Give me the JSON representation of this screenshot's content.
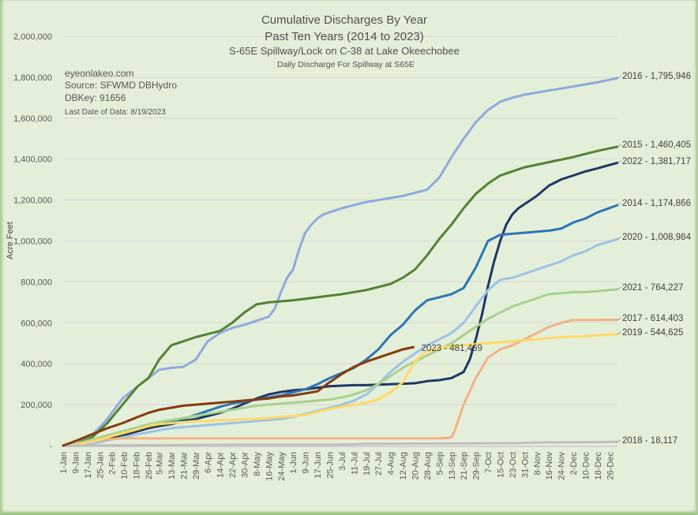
{
  "chart_data": {
    "type": "line",
    "title": "Cumulative Discharges By Year",
    "subtitle": "Past Ten Years (2014 to 2023)",
    "subtitle2": "S-65E Spillway/Lock on C-38 at Lake Okeechobee",
    "subtitle3": "Daily Discharge For Spillway at S65E",
    "info": [
      "eyeonlakeo.com",
      "Source: SFWMD DBHydro",
      "DBKey: 91656"
    ],
    "info_small": "Last Date of Data: 8/19/2023",
    "xlabel": "",
    "ylabel": "Acre Feet",
    "ylim": [
      0,
      2000000
    ],
    "yticks": [
      0,
      200000,
      400000,
      600000,
      800000,
      1000000,
      1200000,
      1400000,
      1600000,
      1800000,
      2000000
    ],
    "ytick_labels": [
      "-",
      "200,000",
      "400,000",
      "600,000",
      "800,000",
      "1,000,000",
      "1,200,000",
      "1,400,000",
      "1,600,000",
      "1,800,000",
      "2,000,000"
    ],
    "xlim_day_of_year": [
      1,
      365
    ],
    "x_tick_days": [
      1,
      9,
      17,
      25,
      33,
      41,
      49,
      57,
      64,
      72,
      80,
      88,
      96,
      104,
      112,
      120,
      128,
      136,
      144,
      152,
      160,
      168,
      176,
      184,
      192,
      200,
      208,
      216,
      224,
      232,
      240,
      248,
      256,
      264,
      272,
      280,
      288,
      296,
      304,
      312,
      320,
      328,
      336,
      344,
      352,
      360
    ],
    "x_tick_labels": [
      "1-Jan",
      "9-Jan",
      "17-Jan",
      "25-Jan",
      "2-Feb",
      "10-Feb",
      "18-Feb",
      "26-Feb",
      "5-Mar",
      "13-Mar",
      "21-Mar",
      "29-Mar",
      "6-Apr",
      "14-Apr",
      "22-Apr",
      "30-Apr",
      "8-May",
      "16-May",
      "24-May",
      "1-Jun",
      "9-Jun",
      "17-Jun",
      "25-Jun",
      "3-Jul",
      "11-Jul",
      "19-Jul",
      "27-Jul",
      "4-Aug",
      "12-Aug",
      "20-Aug",
      "28-Aug",
      "5-Sep",
      "13-Sep",
      "21-Sep",
      "29-Sep",
      "7-Oct",
      "15-Oct",
      "23-Oct",
      "31-Oct",
      "8-Nov",
      "16-Nov",
      "24-Nov",
      "2-Dec",
      "10-Dec",
      "18-Dec",
      "26-Dec"
    ],
    "grid": true,
    "legend": "end-of-line labels (right)",
    "series": [
      {
        "name": "2016",
        "label": "2016 - 1,795,946",
        "color": "#8faadc",
        "x": [
          1,
          10,
          20,
          30,
          40,
          50,
          57,
          64,
          72,
          80,
          88,
          96,
          104,
          112,
          120,
          128,
          136,
          140,
          144,
          148,
          152,
          156,
          160,
          164,
          168,
          172,
          176,
          184,
          192,
          200,
          208,
          216,
          224,
          232,
          240,
          248,
          256,
          264,
          272,
          280,
          288,
          296,
          304,
          320,
          336,
          352,
          365
        ],
        "y": [
          0,
          10000,
          50000,
          130000,
          230000,
          290000,
          330000,
          370000,
          380000,
          385000,
          420000,
          510000,
          550000,
          575000,
          590000,
          610000,
          630000,
          670000,
          750000,
          820000,
          860000,
          960000,
          1040000,
          1080000,
          1110000,
          1130000,
          1140000,
          1160000,
          1175000,
          1190000,
          1200000,
          1210000,
          1220000,
          1235000,
          1250000,
          1310000,
          1410000,
          1500000,
          1580000,
          1640000,
          1680000,
          1700000,
          1715000,
          1735000,
          1755000,
          1775000,
          1795946
        ]
      },
      {
        "name": "2015",
        "label": "2015 - 1,460,405",
        "color": "#548235",
        "x": [
          1,
          10,
          20,
          30,
          40,
          50,
          57,
          64,
          72,
          80,
          88,
          96,
          104,
          112,
          120,
          128,
          136,
          152,
          168,
          184,
          200,
          216,
          224,
          232,
          240,
          248,
          256,
          264,
          272,
          280,
          288,
          296,
          304,
          320,
          336,
          352,
          365
        ],
        "y": [
          0,
          10000,
          40000,
          110000,
          200000,
          290000,
          330000,
          420000,
          490000,
          510000,
          530000,
          545000,
          560000,
          600000,
          650000,
          690000,
          700000,
          710000,
          725000,
          740000,
          760000,
          790000,
          820000,
          860000,
          930000,
          1010000,
          1080000,
          1160000,
          1230000,
          1280000,
          1320000,
          1340000,
          1360000,
          1385000,
          1410000,
          1440000,
          1460405
        ]
      },
      {
        "name": "2022",
        "label": "2022 - 1,381,717",
        "color": "#1f3864",
        "x": [
          1,
          10,
          20,
          30,
          40,
          50,
          57,
          64,
          72,
          80,
          88,
          96,
          104,
          112,
          120,
          128,
          136,
          144,
          152,
          160,
          168,
          176,
          184,
          192,
          200,
          208,
          216,
          224,
          232,
          240,
          248,
          256,
          264,
          268,
          272,
          276,
          280,
          284,
          288,
          292,
          296,
          300,
          304,
          312,
          320,
          328,
          336,
          344,
          352,
          365
        ],
        "y": [
          0,
          5000,
          15000,
          30000,
          50000,
          70000,
          85000,
          95000,
          105000,
          120000,
          130000,
          145000,
          160000,
          180000,
          205000,
          230000,
          250000,
          262000,
          270000,
          275000,
          283000,
          290000,
          293000,
          295000,
          295000,
          298000,
          300000,
          302000,
          305000,
          315000,
          320000,
          330000,
          360000,
          420000,
          520000,
          640000,
          780000,
          900000,
          1000000,
          1080000,
          1130000,
          1160000,
          1180000,
          1220000,
          1270000,
          1300000,
          1320000,
          1340000,
          1355000,
          1381717
        ]
      },
      {
        "name": "2014",
        "label": "2014 - 1,174,866",
        "color": "#2e75b6",
        "x": [
          1,
          10,
          20,
          30,
          40,
          50,
          57,
          64,
          72,
          80,
          88,
          96,
          104,
          112,
          120,
          128,
          136,
          144,
          152,
          160,
          168,
          176,
          184,
          192,
          200,
          208,
          216,
          224,
          232,
          240,
          248,
          256,
          264,
          272,
          280,
          288,
          296,
          304,
          312,
          320,
          328,
          336,
          344,
          352,
          365
        ],
        "y": [
          0,
          5000,
          20000,
          40000,
          60000,
          80000,
          100000,
          110000,
          120000,
          130000,
          150000,
          170000,
          190000,
          205000,
          215000,
          225000,
          235000,
          245000,
          260000,
          275000,
          300000,
          330000,
          355000,
          380000,
          420000,
          470000,
          540000,
          590000,
          660000,
          710000,
          725000,
          740000,
          770000,
          870000,
          1000000,
          1030000,
          1035000,
          1040000,
          1045000,
          1050000,
          1060000,
          1090000,
          1110000,
          1140000,
          1174866
        ]
      },
      {
        "name": "2020",
        "label": "2020 - 1,008,984",
        "color": "#9dc3e6",
        "x": [
          1,
          10,
          20,
          30,
          40,
          50,
          57,
          64,
          72,
          80,
          88,
          96,
          104,
          112,
          120,
          128,
          136,
          144,
          152,
          160,
          168,
          176,
          184,
          192,
          200,
          208,
          216,
          224,
          232,
          240,
          248,
          256,
          264,
          272,
          280,
          288,
          296,
          304,
          312,
          320,
          328,
          336,
          344,
          352,
          365
        ],
        "y": [
          0,
          3000,
          10000,
          25000,
          40000,
          55000,
          65000,
          75000,
          85000,
          90000,
          95000,
          100000,
          105000,
          110000,
          115000,
          120000,
          125000,
          130000,
          140000,
          155000,
          170000,
          185000,
          200000,
          220000,
          250000,
          300000,
          360000,
          410000,
          450000,
          490000,
          520000,
          550000,
          600000,
          680000,
          760000,
          810000,
          820000,
          840000,
          860000,
          880000,
          900000,
          930000,
          950000,
          980000,
          1008984
        ]
      },
      {
        "name": "2021",
        "label": "2021 - 764,227",
        "color": "#a9d18e",
        "x": [
          1,
          10,
          20,
          30,
          40,
          50,
          57,
          64,
          72,
          80,
          88,
          96,
          104,
          112,
          120,
          128,
          136,
          144,
          152,
          160,
          168,
          176,
          184,
          192,
          200,
          208,
          216,
          224,
          232,
          240,
          248,
          256,
          264,
          272,
          280,
          288,
          296,
          304,
          312,
          320,
          328,
          336,
          344,
          352,
          365
        ],
        "y": [
          0,
          10000,
          30000,
          50000,
          70000,
          90000,
          105000,
          115000,
          125000,
          135000,
          145000,
          155000,
          165000,
          175000,
          185000,
          195000,
          200000,
          205000,
          210000,
          215000,
          220000,
          225000,
          235000,
          250000,
          270000,
          300000,
          340000,
          380000,
          410000,
          440000,
          470000,
          500000,
          540000,
          580000,
          620000,
          650000,
          680000,
          700000,
          720000,
          740000,
          745000,
          750000,
          750000,
          755000,
          764227
        ]
      },
      {
        "name": "2017",
        "label": "2017 - 614,403",
        "color": "#f4b183",
        "x": [
          1,
          10,
          20,
          30,
          40,
          50,
          57,
          64,
          80,
          100,
          150,
          200,
          230,
          250,
          256,
          258,
          264,
          272,
          280,
          288,
          296,
          304,
          312,
          320,
          328,
          336,
          344,
          352,
          365
        ],
        "y": [
          0,
          5000,
          20000,
          30000,
          35000,
          35000,
          35000,
          35000,
          35000,
          35000,
          35000,
          35000,
          35000,
          35000,
          40000,
          70000,
          200000,
          330000,
          430000,
          470000,
          490000,
          520000,
          550000,
          580000,
          600000,
          614000,
          614000,
          614000,
          614403
        ]
      },
      {
        "name": "2019",
        "label": "2019 - 544,625",
        "color": "#ffd966",
        "x": [
          1,
          10,
          20,
          30,
          40,
          50,
          57,
          64,
          72,
          80,
          88,
          96,
          104,
          112,
          120,
          128,
          136,
          144,
          152,
          160,
          168,
          176,
          184,
          192,
          200,
          208,
          216,
          224,
          228,
          232,
          236,
          240,
          248,
          256,
          264,
          272,
          280,
          296,
          312,
          328,
          344,
          365
        ],
        "y": [
          0,
          5000,
          20000,
          40000,
          60000,
          80000,
          95000,
          105000,
          110000,
          115000,
          120000,
          120000,
          125000,
          125000,
          130000,
          130000,
          135000,
          140000,
          145000,
          150000,
          165000,
          180000,
          190000,
          200000,
          210000,
          225000,
          260000,
          310000,
          360000,
          410000,
          440000,
          460000,
          475000,
          485000,
          490000,
          495000,
          500000,
          510000,
          520000,
          530000,
          535000,
          544625
        ]
      },
      {
        "name": "2018",
        "label": "2018 - 18,117",
        "color": "#bfbfbf",
        "x": [
          1,
          60,
          120,
          180,
          200,
          250,
          300,
          310,
          350,
          365
        ],
        "y": [
          0,
          2000,
          5000,
          5000,
          8000,
          10000,
          12000,
          15000,
          17000,
          18117
        ]
      },
      {
        "name": "2023",
        "label": "2023 - 481,469",
        "color": "#843c0c",
        "x": [
          1,
          10,
          20,
          30,
          40,
          50,
          57,
          64,
          72,
          80,
          88,
          96,
          104,
          112,
          120,
          128,
          136,
          144,
          152,
          160,
          168,
          176,
          184,
          192,
          200,
          208,
          216,
          224,
          231
        ],
        "y": [
          0,
          25000,
          55000,
          85000,
          110000,
          140000,
          160000,
          175000,
          185000,
          195000,
          200000,
          205000,
          210000,
          215000,
          220000,
          225000,
          230000,
          240000,
          245000,
          255000,
          265000,
          310000,
          350000,
          385000,
          410000,
          430000,
          450000,
          470000,
          481469
        ]
      }
    ]
  }
}
